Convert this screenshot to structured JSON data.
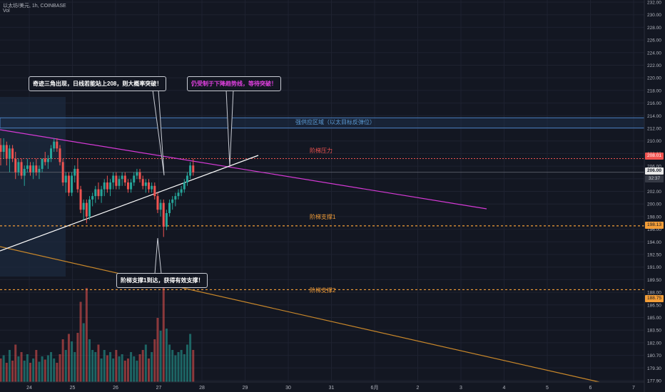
{
  "header": {
    "symbol": "以太坊/美元",
    "interval": "1h",
    "exchange": "COINBASE",
    "volume_label": "Vol"
  },
  "annotations": {
    "triangle_note": "奇迹三角出现，日线若能站上208，则大概率突破！",
    "downtrend_note": "仍受制于下降趋势线，等待突破！",
    "support_note": "阶梯支撑1到达，获得有效支撑！",
    "zone_label": "强供应区域（以太目标反弹位）",
    "resistance_label": "阶梯压力",
    "support1_label": "阶梯支撑1",
    "support2_label": "阶梯支撑2"
  },
  "price_tags": {
    "resistance": "208.01",
    "current": "206.00",
    "countdown": "32:37",
    "support1": "198.13",
    "support2": "188.75"
  },
  "colors": {
    "background": "#131722",
    "grid": "#1e2230",
    "up": "#26a69a",
    "down": "#ef5350",
    "resistance": "#ef5350",
    "support": "#f29d38",
    "downtrend": "#d63ad6",
    "long_trend": "#c8872a",
    "uptrend": "#ffffff",
    "zone": "#4a7fc1"
  },
  "chart_data": {
    "type": "candlestick",
    "x_ticks": [
      "24",
      "25",
      "26",
      "27",
      "28",
      "29",
      "30",
      "31",
      "6月",
      "2",
      "3",
      "4",
      "5",
      "6",
      "7"
    ],
    "y_ticks": [
      "232.00",
      "230.00",
      "228.00",
      "226.00",
      "224.00",
      "222.00",
      "220.00",
      "218.00",
      "216.00",
      "214.00",
      "212.00",
      "210.00",
      "208.00",
      "206.00",
      "204.00",
      "202.00",
      "200.00",
      "198.00",
      "196.00",
      "194.00",
      "192.50",
      "191.00",
      "189.50",
      "188.00",
      "186.50",
      "185.00",
      "183.50",
      "182.00",
      "180.70",
      "179.30",
      "177.90"
    ],
    "levels": {
      "resistance": 208.01,
      "current": 206.0,
      "support1": 198.13,
      "support2": 188.75
    },
    "zone": {
      "from": 212.5,
      "to": 214.0
    },
    "candles": [
      [
        210,
        211,
        207,
        209
      ],
      [
        209,
        211,
        208,
        210
      ],
      [
        210,
        210.5,
        207,
        208
      ],
      [
        208,
        210,
        206,
        209.5
      ],
      [
        209.5,
        210,
        207.5,
        208
      ],
      [
        208,
        209,
        205,
        206
      ],
      [
        206,
        208,
        205.5,
        207.5
      ],
      [
        207.5,
        208,
        205,
        205.5
      ],
      [
        205.5,
        207,
        204,
        206.5
      ],
      [
        206.5,
        208,
        206,
        207
      ],
      [
        207,
        207.5,
        205.5,
        206
      ],
      [
        206,
        207.5,
        205,
        207
      ],
      [
        207,
        208,
        205.5,
        206
      ],
      [
        206,
        207,
        205,
        206.5
      ],
      [
        206.5,
        208,
        206,
        208
      ],
      [
        208,
        209,
        207,
        207.5
      ],
      [
        207.5,
        208.5,
        206.5,
        208
      ],
      [
        208,
        210,
        207.5,
        209.5
      ],
      [
        209.5,
        211,
        209,
        210.5
      ],
      [
        210.5,
        211,
        209,
        209.5
      ],
      [
        209.5,
        210,
        207,
        207.5
      ],
      [
        207.5,
        208,
        204,
        204.5
      ],
      [
        204.5,
        206,
        203,
        205.5
      ],
      [
        205.5,
        206,
        202.5,
        203
      ],
      [
        203,
        206,
        202.5,
        205.5
      ],
      [
        205.5,
        207,
        204.5,
        206.5
      ],
      [
        206.5,
        208,
        203,
        203.5
      ],
      [
        203.5,
        204,
        200,
        200.5
      ],
      [
        200.5,
        202,
        199,
        201.5
      ],
      [
        201.5,
        202,
        198.5,
        199.5
      ],
      [
        199.5,
        202.5,
        199,
        202
      ],
      [
        202,
        203,
        201,
        202.5
      ],
      [
        202.5,
        204,
        201.5,
        203.5
      ],
      [
        203.5,
        204.5,
        202,
        202.5
      ],
      [
        202.5,
        204,
        201.5,
        203.5
      ],
      [
        203.5,
        205,
        202.5,
        204.5
      ],
      [
        204.5,
        205.5,
        203,
        203.5
      ],
      [
        203.5,
        205,
        202.5,
        204.5
      ],
      [
        204.5,
        206,
        203.5,
        205.5
      ],
      [
        205.5,
        206,
        203.5,
        204
      ],
      [
        204,
        205.5,
        203.5,
        205
      ],
      [
        205,
        206,
        204,
        205.5
      ],
      [
        205.5,
        206,
        204,
        204.5
      ],
      [
        204.5,
        205,
        203,
        203.5
      ],
      [
        203.5,
        205,
        203,
        204.5
      ],
      [
        204.5,
        206,
        204,
        205.5
      ],
      [
        205.5,
        206.5,
        205,
        206
      ],
      [
        206,
        206.5,
        204.5,
        205
      ],
      [
        205,
        205.5,
        203.5,
        204
      ],
      [
        204,
        205,
        203,
        204.5
      ],
      [
        204.5,
        205,
        203,
        203.5
      ],
      [
        203.5,
        204.5,
        203,
        204
      ],
      [
        204,
        204.5,
        202,
        202.5
      ],
      [
        202.5,
        203,
        200,
        200.5
      ],
      [
        200.5,
        202,
        199.5,
        201.5
      ],
      [
        201.5,
        202,
        196.5,
        198
      ],
      [
        198,
        200.5,
        197.5,
        200
      ],
      [
        200,
        202,
        199.5,
        201.5
      ],
      [
        201.5,
        202.5,
        200.5,
        202
      ],
      [
        202,
        203,
        201,
        202.5
      ],
      [
        202.5,
        203.5,
        202,
        203
      ],
      [
        203,
        204,
        202.5,
        203.5
      ],
      [
        203.5,
        205,
        203,
        204.5
      ],
      [
        204.5,
        206,
        204,
        205.5
      ],
      [
        205.5,
        207.5,
        205,
        207
      ],
      [
        207,
        208,
        205.5,
        206
      ]
    ],
    "volumes": [
      22,
      25,
      18,
      30,
      20,
      35,
      24,
      28,
      20,
      26,
      18,
      22,
      30,
      19,
      24,
      21,
      25,
      28,
      22,
      18,
      26,
      40,
      30,
      45,
      38,
      28,
      46,
      75,
      55,
      88,
      40,
      30,
      28,
      35,
      22,
      30,
      25,
      28,
      22,
      30,
      24,
      26,
      20,
      22,
      28,
      24,
      20,
      26,
      30,
      35,
      22,
      28,
      40,
      60,
      48,
      90,
      50,
      35,
      30,
      25,
      28,
      30,
      26,
      35,
      45,
      30
    ]
  }
}
